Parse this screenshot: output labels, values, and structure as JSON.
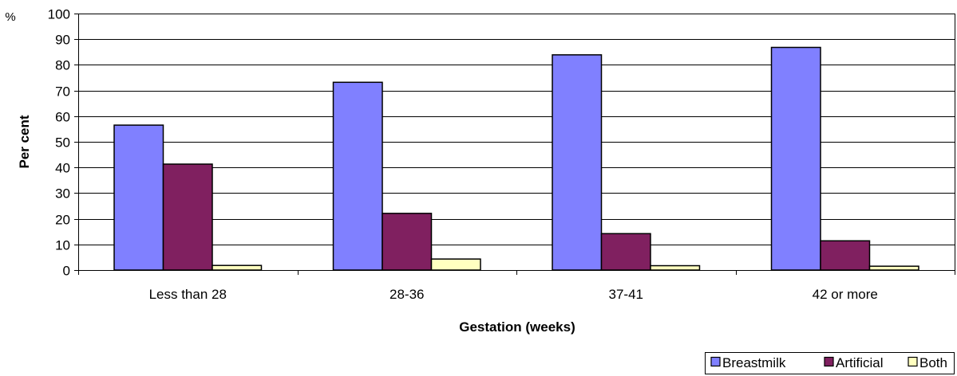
{
  "chart_data": {
    "type": "bar",
    "unit_label": "%",
    "xlabel": "Gestation (weeks)",
    "ylabel": "Per cent",
    "categories": [
      "Less than 28",
      "28-36",
      "37-41",
      "42 or more"
    ],
    "series": [
      {
        "name": "Breastmilk",
        "color": "#8080ff",
        "values": [
          56.5,
          73.2,
          83.9,
          86.8
        ]
      },
      {
        "name": "Artificial",
        "color": "#802060",
        "values": [
          41.3,
          22.1,
          14.2,
          11.4
        ]
      },
      {
        "name": "Both",
        "color": "#ffffc0",
        "values": [
          1.8,
          4.3,
          1.7,
          1.5
        ]
      }
    ],
    "ylim": [
      0,
      100
    ],
    "yticks": [
      0,
      10,
      20,
      30,
      40,
      50,
      60,
      70,
      80,
      90,
      100
    ],
    "grid": true,
    "legend_position": "bottom-right"
  }
}
